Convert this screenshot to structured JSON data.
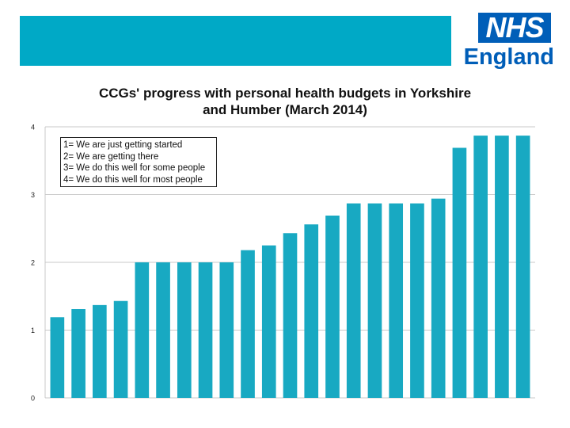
{
  "logo": {
    "mark": "NHS",
    "region": "England"
  },
  "colors": {
    "band": "#00a9c6",
    "bar": "#18a9c2",
    "logo": "#005eb8",
    "grid": "#c8c8c8"
  },
  "chart_data": {
    "type": "bar",
    "title": "CCGs' progress with personal health budgets in Yorkshire and Humber (March 2014)",
    "title_lines": [
      "CCGs' progress with personal health budgets in Yorkshire",
      "and Humber (March 2014)"
    ],
    "xlabel": "",
    "ylabel": "",
    "ylim": [
      0,
      4
    ],
    "yticks": [
      0,
      1,
      2,
      3,
      4
    ],
    "ytick_labels": [
      "0",
      "1",
      "2",
      "3",
      "4"
    ],
    "grid": true,
    "legend_placement": "top-left",
    "legend": [
      "1= We are just getting started",
      "2= We are getting there",
      "3= We do this well for some people",
      "4= We do this well for most people"
    ],
    "values": [
      1.19,
      1.31,
      1.37,
      1.43,
      2.0,
      2.0,
      2.0,
      2.0,
      2.0,
      2.18,
      2.25,
      2.43,
      2.56,
      2.69,
      2.87,
      2.87,
      2.87,
      2.87,
      2.94,
      3.69,
      3.87,
      3.87,
      3.87
    ]
  }
}
